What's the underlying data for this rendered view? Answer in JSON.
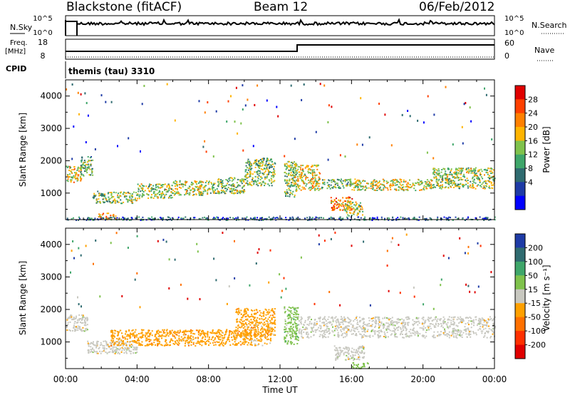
{
  "header": {
    "station": "Blackstone (fitACF)",
    "beam": "Beam 12",
    "date": "06/Feb/2012"
  },
  "strips": {
    "nsky_label": "N.Sky",
    "nsearch_label": "N.Search",
    "freq_label_1": "Freq.",
    "freq_label_2": "[MHz]",
    "nave_label": "Nave",
    "cpid_label": "CPID",
    "cpid_value": "themis (tau) 3310",
    "nsky_ticks": [
      "10^5",
      "10^0"
    ],
    "nsearch_ticks": [
      "10^5",
      "10^0"
    ],
    "freq_ticks": [
      "18",
      "8"
    ],
    "nave_ticks": [
      "60",
      "0"
    ]
  },
  "colors": {
    "power_scale": [
      "#0000ff",
      "#1e3ba6",
      "#2f6b70",
      "#3fa66a",
      "#7fc24c",
      "#ffb400",
      "#ff8000",
      "#ff4000",
      "#e00000"
    ],
    "velocity_scale": [
      "#1e3ba6",
      "#2f6b70",
      "#3fa66a",
      "#7fc24c",
      "#c8c8c0",
      "#ffa000",
      "#ff7000",
      "#ff3000",
      "#e00000"
    ]
  },
  "chart_data": [
    {
      "type": "heatmap",
      "name": "power",
      "ylabel": "Slant Range [km]",
      "xlabel": "",
      "ylim": [
        180,
        4500
      ],
      "xlim": [
        0,
        24
      ],
      "xticks": [
        0,
        4,
        8,
        12,
        16,
        20,
        24
      ],
      "yticks": [
        1000,
        2000,
        3000,
        4000
      ],
      "ytick_labels": [
        "1000",
        "2000",
        "3000",
        "4000"
      ],
      "colorbar": {
        "label": "Power [dB]",
        "ticks": [
          "28",
          "24",
          "20",
          "16",
          "12",
          "8",
          "4"
        ],
        "range": [
          0,
          30
        ]
      },
      "bands": [
        {
          "t0": 0.0,
          "t1": 0.9,
          "r0": 1350,
          "r1": 1850,
          "level": 18
        },
        {
          "t0": 0.8,
          "t1": 1.5,
          "r0": 1550,
          "r1": 2150,
          "level": 12
        },
        {
          "t0": 1.5,
          "t1": 2.2,
          "r0": 700,
          "r1": 1100,
          "level": 13
        },
        {
          "t0": 2.2,
          "t1": 4.0,
          "r0": 700,
          "r1": 1050,
          "level": 14
        },
        {
          "t0": 4.0,
          "t1": 6.0,
          "r0": 850,
          "r1": 1300,
          "level": 15
        },
        {
          "t0": 6.0,
          "t1": 8.0,
          "r0": 950,
          "r1": 1400,
          "level": 16
        },
        {
          "t0": 8.0,
          "t1": 10.0,
          "r0": 1000,
          "r1": 1500,
          "level": 14
        },
        {
          "t0": 10.0,
          "t1": 11.7,
          "r0": 1250,
          "r1": 2100,
          "level": 13
        },
        {
          "t0": 12.2,
          "t1": 12.9,
          "r0": 900,
          "r1": 2000,
          "level": 14
        },
        {
          "t0": 12.8,
          "t1": 14.2,
          "r0": 1100,
          "r1": 1900,
          "level": 18
        },
        {
          "t0": 14.3,
          "t1": 16.0,
          "r0": 1150,
          "r1": 1450,
          "level": 12
        },
        {
          "t0": 14.8,
          "t1": 16.0,
          "r0": 480,
          "r1": 900,
          "level": 22
        },
        {
          "t0": 15.6,
          "t1": 16.6,
          "r0": 300,
          "r1": 750,
          "level": 16
        },
        {
          "t0": 16.0,
          "t1": 20.5,
          "r0": 1100,
          "r1": 1450,
          "level": 17
        },
        {
          "t0": 20.5,
          "t1": 24.0,
          "r0": 1150,
          "r1": 1800,
          "level": 15
        },
        {
          "t0": 1.8,
          "t1": 2.8,
          "r0": 200,
          "r1": 400,
          "level": 21
        },
        {
          "t0": 0.0,
          "t1": 24.0,
          "r0": 180,
          "r1": 280,
          "level": 6
        }
      ]
    },
    {
      "type": "heatmap",
      "name": "velocity",
      "ylabel": "Slant Range [km]",
      "xlabel": "Time UT",
      "ylim": [
        180,
        4500
      ],
      "xlim": [
        0,
        24
      ],
      "xticks": [
        0,
        4,
        8,
        12,
        16,
        20,
        24
      ],
      "xtick_labels": [
        "00:00",
        "04:00",
        "08:00",
        "12:00",
        "16:00",
        "20:00",
        "00:00"
      ],
      "yticks": [
        1000,
        2000,
        3000,
        4000
      ],
      "ytick_labels": [
        "1000",
        "2000",
        "3000",
        "4000"
      ],
      "colorbar": {
        "label": "Velocity [m s⁻¹]",
        "ticks": [
          "200",
          "100",
          "50",
          "15",
          "-15",
          "-50",
          "-100",
          "-200"
        ]
      },
      "bands": [
        {
          "t0": 0.0,
          "t1": 1.2,
          "r0": 1350,
          "r1": 1850,
          "cat": 4
        },
        {
          "t0": 1.2,
          "t1": 4.0,
          "r0": 650,
          "r1": 1050,
          "cat": 4
        },
        {
          "t0": 2.5,
          "t1": 11.5,
          "r0": 900,
          "r1": 1400,
          "cat": 5
        },
        {
          "t0": 9.5,
          "t1": 11.7,
          "r0": 1200,
          "r1": 2050,
          "cat": 5
        },
        {
          "t0": 12.2,
          "t1": 13.0,
          "r0": 950,
          "r1": 2100,
          "cat": 3
        },
        {
          "t0": 13.0,
          "t1": 24.0,
          "r0": 1150,
          "r1": 1800,
          "cat": 4
        },
        {
          "t0": 15.0,
          "t1": 16.7,
          "r0": 450,
          "r1": 900,
          "cat": 4
        },
        {
          "t0": 16.0,
          "t1": 17.0,
          "r0": 200,
          "r1": 380,
          "cat": 3
        }
      ]
    }
  ],
  "axis": {
    "time_labels": [
      "00:00",
      "04:00",
      "08:00",
      "12:00",
      "16:00",
      "20:00",
      "00:00"
    ],
    "time_title": "Time UT"
  }
}
